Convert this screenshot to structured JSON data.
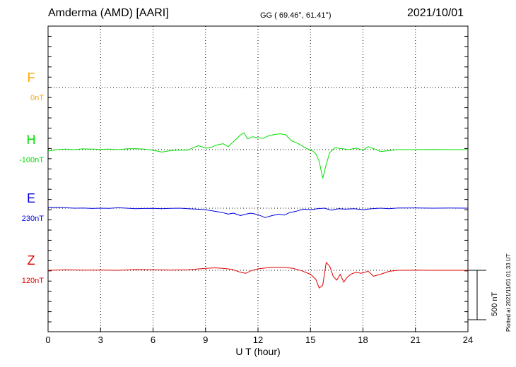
{
  "header": {
    "station": "Amderma (AMD)  [AARI]",
    "coords": "GG ( 69.46°,  61.41°)",
    "date": "2021/10/01"
  },
  "plotted_note": "Plotted at 2021/11/01 01:33 UT",
  "scale_label": "500 nT",
  "chart_data": {
    "type": "line",
    "xlabel": "U T (hour)",
    "xlim": [
      0,
      24
    ],
    "xticks": [
      0,
      3,
      6,
      9,
      12,
      15,
      18,
      21,
      24
    ],
    "scale_nT": 500,
    "grid": true,
    "series": [
      {
        "name": "F",
        "baseline": "0nT",
        "color": "#ffa500",
        "values": []
      },
      {
        "name": "H",
        "baseline": "-100nT",
        "color": "#00e000",
        "values": [
          [
            0,
            -15
          ],
          [
            0.5,
            0
          ],
          [
            1,
            5
          ],
          [
            1.5,
            0
          ],
          [
            2,
            8
          ],
          [
            2.5,
            5
          ],
          [
            3,
            3
          ],
          [
            3.5,
            6
          ],
          [
            4,
            0
          ],
          [
            4.5,
            8
          ],
          [
            5,
            10
          ],
          [
            5.5,
            4
          ],
          [
            6,
            -5
          ],
          [
            6.5,
            -25
          ],
          [
            7,
            -10
          ],
          [
            7.5,
            -5
          ],
          [
            8,
            -5
          ],
          [
            8.3,
            20
          ],
          [
            8.6,
            40
          ],
          [
            9,
            15
          ],
          [
            9.3,
            20
          ],
          [
            9.6,
            45
          ],
          [
            10,
            60
          ],
          [
            10.3,
            30
          ],
          [
            10.6,
            80
          ],
          [
            11,
            150
          ],
          [
            11.2,
            170
          ],
          [
            11.4,
            110
          ],
          [
            11.7,
            130
          ],
          [
            12,
            120
          ],
          [
            12.3,
            115
          ],
          [
            12.6,
            140
          ],
          [
            13,
            155
          ],
          [
            13.3,
            160
          ],
          [
            13.6,
            150
          ],
          [
            13.9,
            90
          ],
          [
            14.2,
            70
          ],
          [
            14.5,
            40
          ],
          [
            14.8,
            10
          ],
          [
            15.1,
            -10
          ],
          [
            15.3,
            -40
          ],
          [
            15.5,
            -120
          ],
          [
            15.7,
            -290
          ],
          [
            15.9,
            -150
          ],
          [
            16.1,
            -30
          ],
          [
            16.4,
            20
          ],
          [
            16.8,
            10
          ],
          [
            17.2,
            0
          ],
          [
            17.6,
            15
          ],
          [
            18,
            -5
          ],
          [
            18.3,
            30
          ],
          [
            18.6,
            10
          ],
          [
            19,
            -20
          ],
          [
            19.5,
            -10
          ],
          [
            20,
            0
          ],
          [
            21,
            0
          ],
          [
            22,
            2
          ],
          [
            23,
            0
          ],
          [
            24,
            0
          ]
        ]
      },
      {
        "name": "E",
        "baseline": "230nT",
        "color": "#0000e0",
        "values": [
          [
            0,
            10
          ],
          [
            0.5,
            8
          ],
          [
            1,
            5
          ],
          [
            1.5,
            0
          ],
          [
            2,
            2
          ],
          [
            2.5,
            -3
          ],
          [
            3,
            0
          ],
          [
            3.5,
            -2
          ],
          [
            4,
            5
          ],
          [
            4.5,
            0
          ],
          [
            5,
            -5
          ],
          [
            5.5,
            -3
          ],
          [
            6,
            -2
          ],
          [
            6.5,
            -5
          ],
          [
            7,
            -2
          ],
          [
            7.5,
            0
          ],
          [
            8,
            -5
          ],
          [
            8.5,
            -10
          ],
          [
            9,
            -15
          ],
          [
            9.5,
            -30
          ],
          [
            10,
            -45
          ],
          [
            10.3,
            -60
          ],
          [
            10.6,
            -50
          ],
          [
            11,
            -75
          ],
          [
            11.3,
            -60
          ],
          [
            11.6,
            -50
          ],
          [
            12,
            -65
          ],
          [
            12.4,
            -95
          ],
          [
            12.8,
            -75
          ],
          [
            13.2,
            -60
          ],
          [
            13.5,
            -70
          ],
          [
            13.8,
            -45
          ],
          [
            14.2,
            -30
          ],
          [
            14.6,
            -10
          ],
          [
            15,
            -15
          ],
          [
            15.4,
            -5
          ],
          [
            15.8,
            0
          ],
          [
            16.2,
            -20
          ],
          [
            16.6,
            -5
          ],
          [
            17,
            -10
          ],
          [
            17.5,
            -5
          ],
          [
            18,
            -15
          ],
          [
            18.5,
            -5
          ],
          [
            19,
            0
          ],
          [
            19.5,
            -5
          ],
          [
            20,
            2
          ],
          [
            21,
            3
          ],
          [
            22,
            0
          ],
          [
            23,
            2
          ],
          [
            24,
            0
          ]
        ]
      },
      {
        "name": "Z",
        "baseline": "120nT",
        "color": "#e00000",
        "values": [
          [
            0,
            0
          ],
          [
            1,
            5
          ],
          [
            2,
            2
          ],
          [
            3,
            3
          ],
          [
            4,
            0
          ],
          [
            5,
            8
          ],
          [
            6,
            5
          ],
          [
            7,
            3
          ],
          [
            8,
            5
          ],
          [
            8.5,
            12
          ],
          [
            9,
            20
          ],
          [
            9.5,
            25
          ],
          [
            10,
            20
          ],
          [
            10.5,
            10
          ],
          [
            11,
            -20
          ],
          [
            11.3,
            -30
          ],
          [
            11.6,
            -5
          ],
          [
            12,
            15
          ],
          [
            12.5,
            25
          ],
          [
            13,
            30
          ],
          [
            13.5,
            30
          ],
          [
            14,
            20
          ],
          [
            14.5,
            -5
          ],
          [
            15,
            -40
          ],
          [
            15.3,
            -90
          ],
          [
            15.5,
            -180
          ],
          [
            15.7,
            -150
          ],
          [
            15.9,
            80
          ],
          [
            16.1,
            40
          ],
          [
            16.3,
            -60
          ],
          [
            16.5,
            -100
          ],
          [
            16.7,
            -40
          ],
          [
            16.9,
            -120
          ],
          [
            17.1,
            -70
          ],
          [
            17.3,
            -40
          ],
          [
            17.6,
            -20
          ],
          [
            17.9,
            -30
          ],
          [
            18.3,
            -10
          ],
          [
            18.6,
            -60
          ],
          [
            19,
            -40
          ],
          [
            19.5,
            -10
          ],
          [
            20,
            0
          ],
          [
            21,
            2
          ],
          [
            22,
            0
          ],
          [
            23,
            0
          ],
          [
            24,
            0
          ]
        ]
      }
    ]
  }
}
